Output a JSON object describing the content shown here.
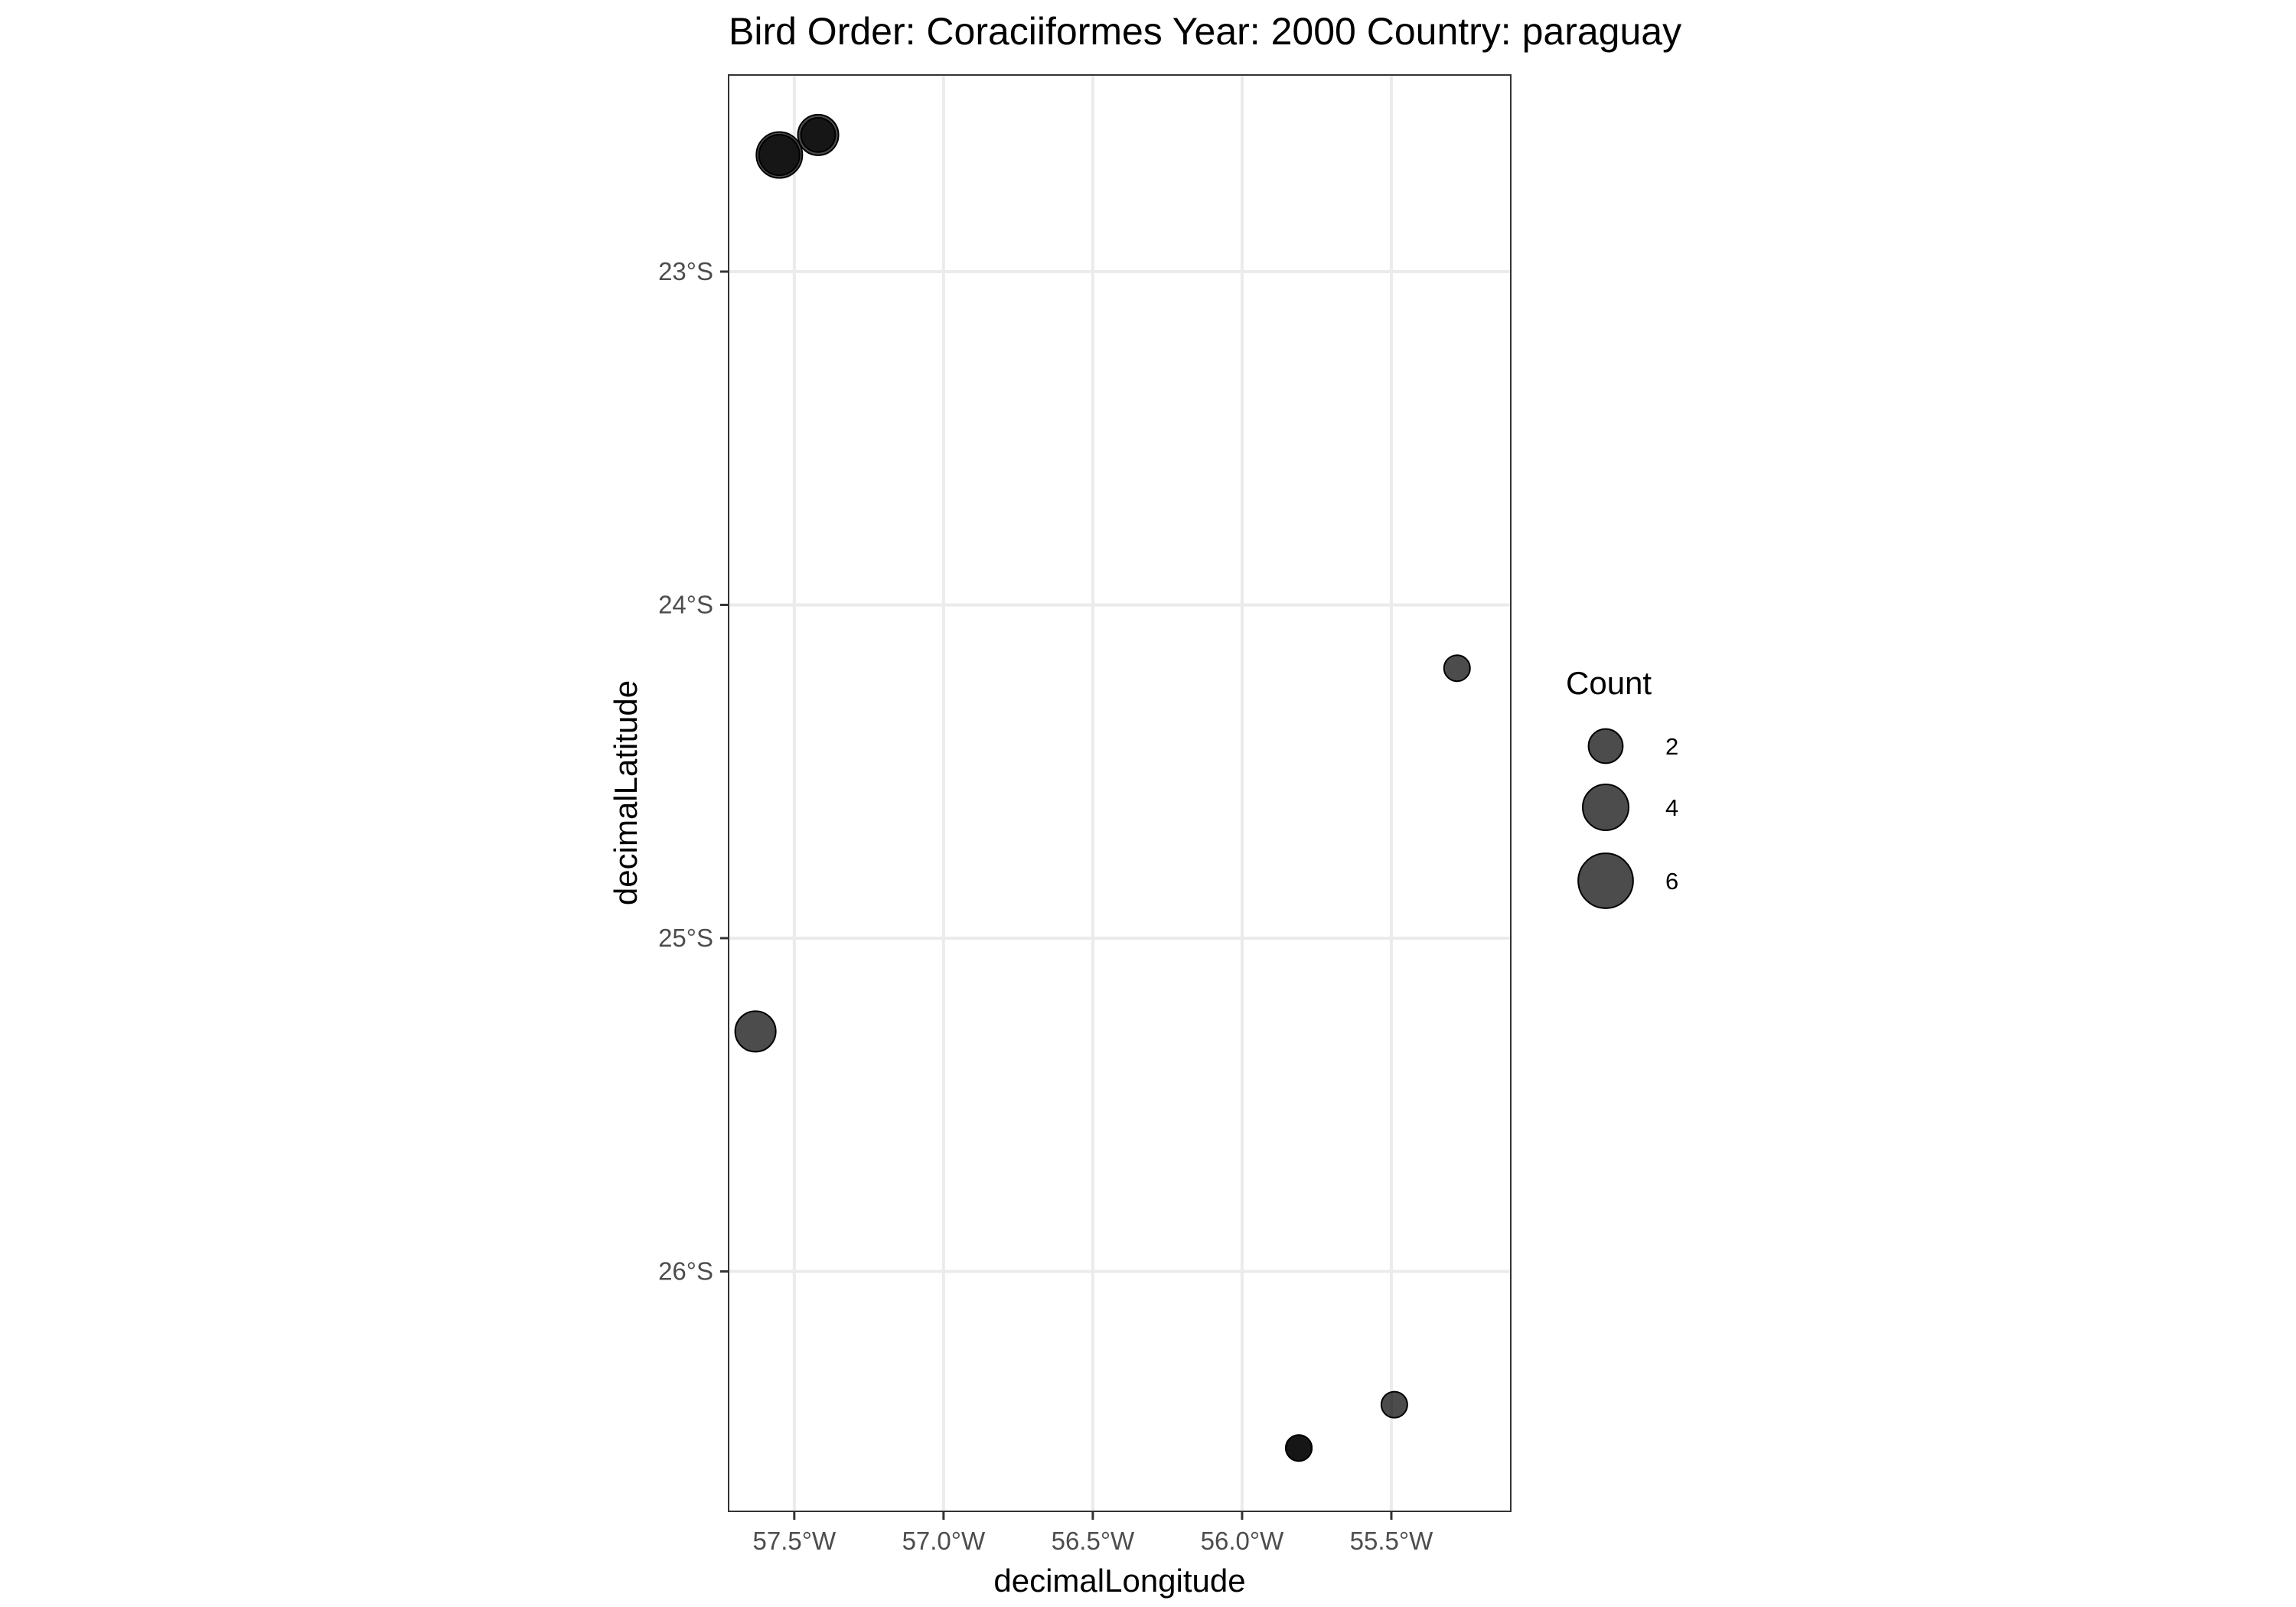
{
  "chart_data": {
    "type": "scatter",
    "title": "Bird Order: Coraciiformes Year: 2000 Country: paraguay",
    "xlabel": "decimalLongitude",
    "ylabel": "decimalLatitude",
    "xlim": [
      -57.72,
      -55.1
    ],
    "ylim": [
      -26.72,
      -22.41
    ],
    "x_ticks": [
      {
        "value": -57.5,
        "label": "57.5°W"
      },
      {
        "value": -57.0,
        "label": "57.0°W"
      },
      {
        "value": -56.5,
        "label": "56.5°W"
      },
      {
        "value": -56.0,
        "label": "56.0°W"
      },
      {
        "value": -55.5,
        "label": "55.5°W"
      }
    ],
    "y_ticks": [
      {
        "value": -23,
        "label": "23°S"
      },
      {
        "value": -24,
        "label": "24°S"
      },
      {
        "value": -25,
        "label": "25°S"
      },
      {
        "value": -26,
        "label": "26°S"
      }
    ],
    "grid": true,
    "point_color": "#000000",
    "point_opacity": 0.7,
    "points": [
      {
        "x": -57.55,
        "y": -22.65,
        "count": 4
      },
      {
        "x": -57.55,
        "y": -22.65,
        "count": 3
      },
      {
        "x": -57.42,
        "y": -22.59,
        "count": 3
      },
      {
        "x": -57.42,
        "y": -22.59,
        "count": 2
      },
      {
        "x": -55.28,
        "y": -24.19,
        "count": 1
      },
      {
        "x": -57.63,
        "y": -25.28,
        "count": 3
      },
      {
        "x": -55.49,
        "y": -26.4,
        "count": 1
      },
      {
        "x": -55.81,
        "y": -26.53,
        "count": 1
      },
      {
        "x": -55.81,
        "y": -26.53,
        "count": 1
      }
    ],
    "legend": {
      "title": "Count",
      "position": "right",
      "entries": [
        {
          "value": 2,
          "label": "2"
        },
        {
          "value": 4,
          "label": "4"
        },
        {
          "value": 6,
          "label": "6"
        }
      ]
    }
  }
}
